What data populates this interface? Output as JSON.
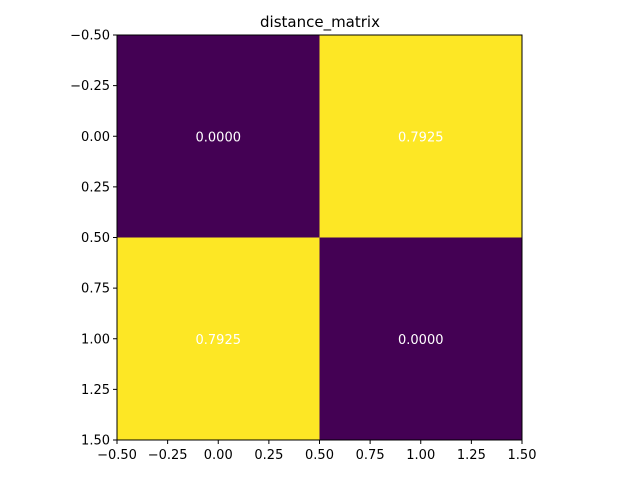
{
  "chart_data": {
    "type": "heatmap",
    "title": "distance_matrix",
    "matrix": [
      [
        0.0,
        0.7925
      ],
      [
        0.7925,
        0.0
      ]
    ],
    "cell_labels": [
      [
        "0.0000",
        "0.7925"
      ],
      [
        "0.7925",
        "0.0000"
      ]
    ],
    "colormap": {
      "low": "#440154",
      "high": "#fde725"
    },
    "label_color": "#ffffff",
    "xlim": [
      -0.5,
      1.5
    ],
    "ylim": [
      -0.5,
      1.5
    ],
    "y_inverted": true,
    "xticks": [
      -0.5,
      -0.25,
      0.0,
      0.25,
      0.5,
      0.75,
      1.0,
      1.25,
      1.5
    ],
    "xtick_labels": [
      "−0.50",
      "−0.25",
      "0.00",
      "0.25",
      "0.50",
      "0.75",
      "1.00",
      "1.25",
      "1.50"
    ],
    "yticks": [
      -0.5,
      -0.25,
      0.0,
      0.25,
      0.5,
      0.75,
      1.0,
      1.25,
      1.5
    ],
    "ytick_labels": [
      "−0.50",
      "−0.25",
      "0.00",
      "0.25",
      "0.50",
      "0.75",
      "1.00",
      "1.25",
      "1.50"
    ],
    "xlabel": "",
    "ylabel": "",
    "grid": false,
    "legend": false
  }
}
